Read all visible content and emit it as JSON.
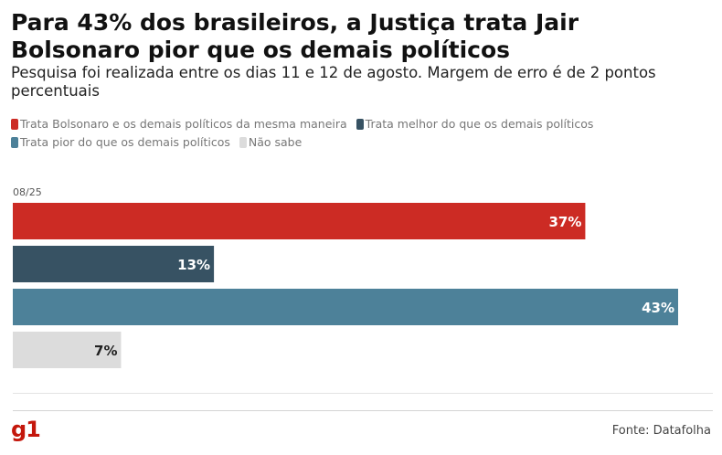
{
  "title": "Para 43% dos brasileiros, a Justiça trata Jair Bolsonaro pior que os demais políticos",
  "subtitle": "Pesquisa foi realizada entre os dias 11 e 12 de agosto. Margem de erro é de 2 pontos percentuais",
  "source": "Fonte: Datafolha",
  "logo": "g1",
  "chart_data": {
    "type": "bar",
    "orientation": "horizontal",
    "categories": [
      "08/25"
    ],
    "series": [
      {
        "name": "Trata Bolsonaro e os demais políticos da mesma maneira",
        "values": [
          37
        ],
        "label": "37%",
        "color": "#cc2b24",
        "label_color": "#ffffff"
      },
      {
        "name": "Trata melhor do que os demais políticos",
        "values": [
          13
        ],
        "label": "13%",
        "color": "#375263",
        "label_color": "#ffffff"
      },
      {
        "name": "Trata pior do que os demais políticos",
        "values": [
          43
        ],
        "label": "43%",
        "color": "#4d8199",
        "label_color": "#ffffff"
      },
      {
        "name": "Não sabe",
        "values": [
          7
        ],
        "label": "7%",
        "color": "#dcdcdc",
        "label_color": "#222222"
      }
    ],
    "xlim": [
      0,
      43
    ],
    "grid": false,
    "legend_position": "top"
  }
}
